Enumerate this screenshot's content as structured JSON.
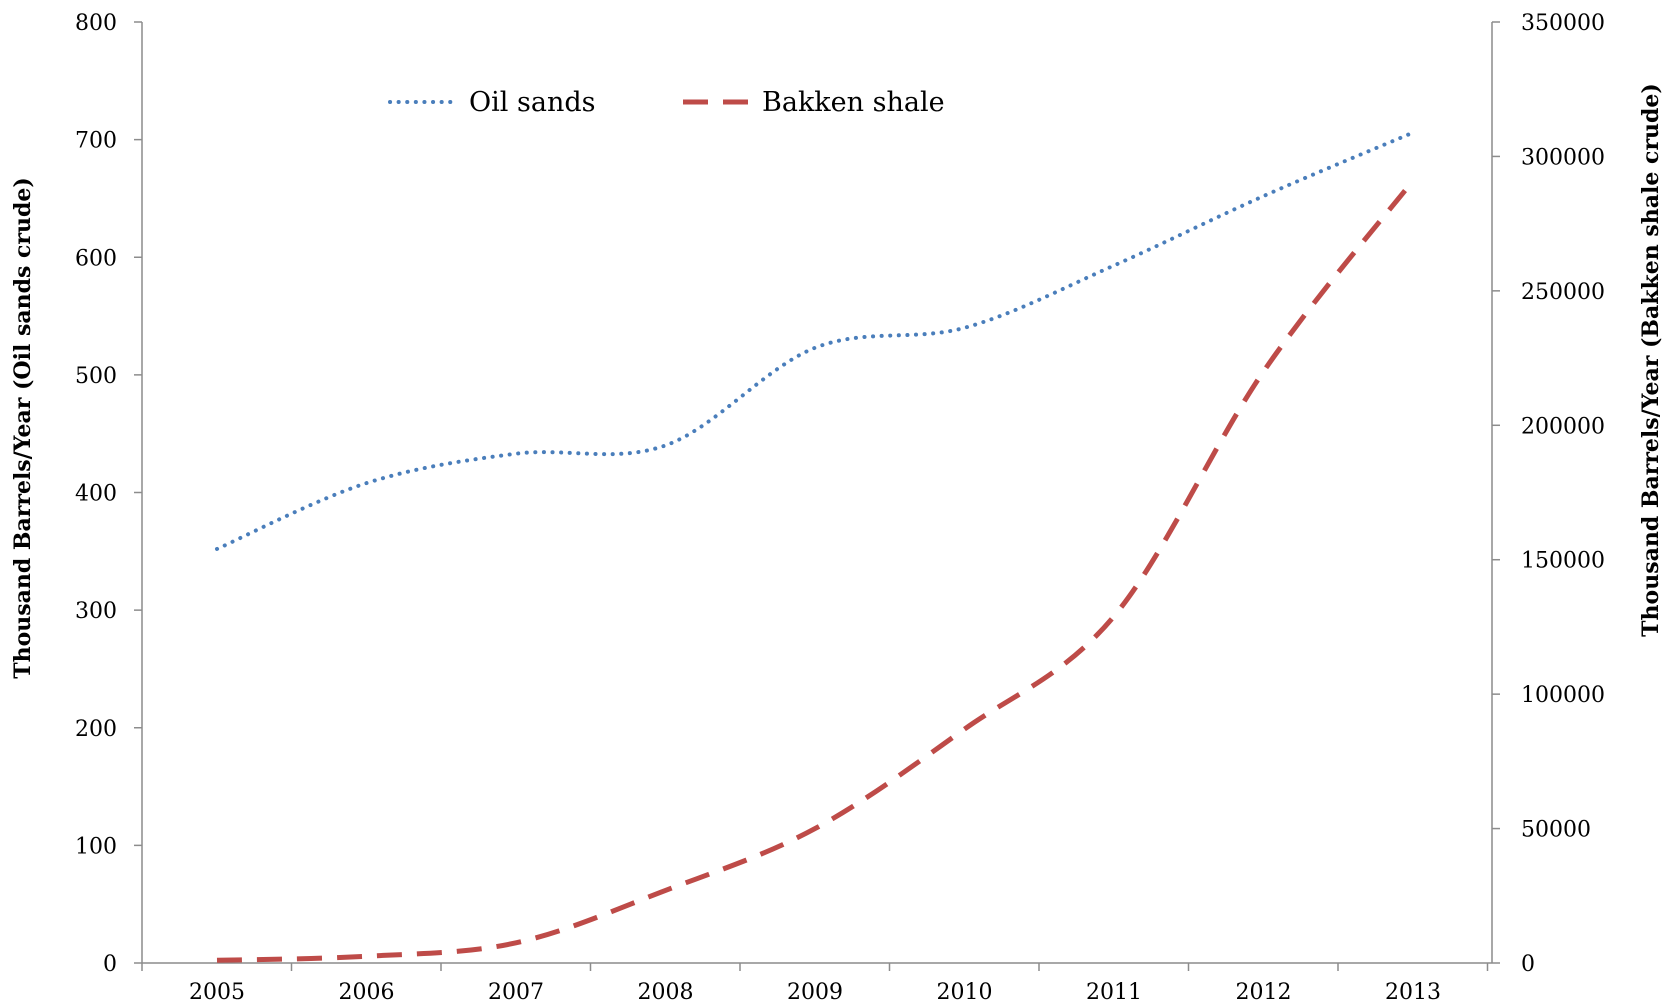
{
  "chart_data": {
    "type": "line",
    "categories": [
      "2005",
      "2006",
      "2007",
      "2008",
      "2009",
      "2010",
      "2011",
      "2012",
      "2013"
    ],
    "series": [
      {
        "name": "Oil sands",
        "axis": "left",
        "color": "#4a7ebb",
        "style": "dotted",
        "values": [
          352,
          408,
          433,
          440,
          523,
          540,
          593,
          652,
          706
        ]
      },
      {
        "name": "Bakken shale",
        "axis": "right",
        "color": "#be4b48",
        "style": "dashed",
        "values": [
          1000,
          2500,
          7500,
          27000,
          50000,
          87000,
          129000,
          220000,
          291000
        ]
      }
    ],
    "y_left": {
      "label": "Thousand Barrels/Year (Oil sands crude)",
      "range": [
        0,
        800
      ],
      "ticks": [
        0,
        100,
        200,
        300,
        400,
        500,
        600,
        700,
        800
      ]
    },
    "y_right": {
      "label": "Thousand Barrels/Year (Bakken shale crude)",
      "range": [
        0,
        350000
      ],
      "ticks": [
        0,
        50000,
        100000,
        150000,
        200000,
        250000,
        300000,
        350000
      ]
    },
    "legend_position": "top-center",
    "grid": false
  }
}
